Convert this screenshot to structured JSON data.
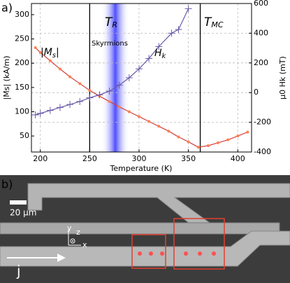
{
  "chart_data": {
    "type": "line",
    "panel_label": "a)",
    "xlabel": "Temperature (K)",
    "ylabel": "|Ms| (kA/m)",
    "y2label": "μ0 Hk (mT)",
    "xlim": [
      191,
      414
    ],
    "xticks": [
      200,
      250,
      300,
      350,
      400
    ],
    "ylim": [
      17,
      323
    ],
    "yticks": [
      50,
      100,
      150,
      200,
      250,
      300
    ],
    "y2lim": [
      -400,
      600
    ],
    "y2ticks": [
      -400,
      -200,
      0,
      200,
      400,
      600
    ],
    "grid": true,
    "vlines": [
      {
        "label": "T",
        "sub": "R",
        "value": 250
      },
      {
        "label": "T",
        "sub": "MC",
        "value": 362
      }
    ],
    "band": {
      "label": "Skyrmions",
      "range": [
        262,
        290
      ],
      "color": "#3a3aff"
    },
    "series": [
      {
        "name": "|M",
        "sub": "s",
        "suffix": "|",
        "color": "#d04040",
        "marker": "dot",
        "axis": "y",
        "x": [
          195,
          200,
          210,
          220,
          230,
          240,
          250,
          260,
          270,
          280,
          290,
          300,
          310,
          320,
          330,
          340,
          350,
          360,
          370,
          380,
          390,
          400,
          410
        ],
        "values": [
          232,
          222,
          205,
          188,
          172,
          158,
          144,
          132,
          121,
          110,
          100,
          90,
          80,
          70,
          60,
          48,
          38,
          27,
          30,
          36,
          42,
          50,
          58
        ]
      },
      {
        "name": "H",
        "sub": "k",
        "color": "#6a5aa8",
        "marker": "cross",
        "axis": "y2",
        "x": [
          195,
          200,
          210,
          220,
          230,
          240,
          250,
          260,
          270,
          280,
          290,
          300,
          310,
          320,
          333,
          340,
          350
        ],
        "values": [
          -150,
          -140,
          -120,
          -100,
          -80,
          -60,
          -35,
          -15,
          10,
          50,
          100,
          160,
          230,
          310,
          400,
          425,
          565
        ]
      }
    ]
  },
  "image_panel": {
    "panel_label": "b)",
    "scale_bar": "20 μm",
    "axis_y": "y",
    "axis_z": "z",
    "axis_x": "x",
    "current": "j"
  }
}
